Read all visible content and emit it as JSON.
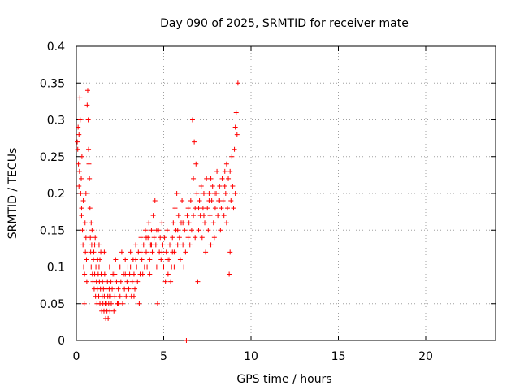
{
  "chart_data": {
    "type": "scatter",
    "title": "Day 090 of 2025, SRMTID for receiver mate",
    "xlabel": "GPS time / hours",
    "ylabel": "SRMTID / TECUs",
    "xlim": [
      0,
      24
    ],
    "ylim": [
      0,
      0.4
    ],
    "xticks": [
      "0",
      "5",
      "10",
      "15",
      "20"
    ],
    "yticks": [
      "0",
      "0.05",
      "0.1",
      "0.15",
      "0.2",
      "0.25",
      "0.3",
      "0.35",
      "0.4"
    ],
    "grid": true,
    "marker": "+",
    "color": "#ff0000",
    "series": [
      {
        "name": "SRMTID",
        "points": [
          [
            0.05,
            0.27
          ],
          [
            0.08,
            0.26
          ],
          [
            0.1,
            0.29
          ],
          [
            0.12,
            0.24
          ],
          [
            0.15,
            0.28
          ],
          [
            0.18,
            0.23
          ],
          [
            0.2,
            0.33
          ],
          [
            0.22,
            0.3
          ],
          [
            0.25,
            0.2
          ],
          [
            0.28,
            0.22
          ],
          [
            0.3,
            0.18
          ],
          [
            0.32,
            0.25
          ],
          [
            0.35,
            0.15
          ],
          [
            0.38,
            0.13
          ],
          [
            0.4,
            0.19
          ],
          [
            0.42,
            0.1
          ],
          [
            0.45,
            0.05
          ],
          [
            0.47,
            0.09
          ],
          [
            0.5,
            0.16
          ],
          [
            0.52,
            0.12
          ],
          [
            0.55,
            0.2
          ],
          [
            0.58,
            0.11
          ],
          [
            0.6,
            0.08
          ],
          [
            0.62,
            0.32
          ],
          [
            0.65,
            0.34
          ],
          [
            0.68,
            0.3
          ],
          [
            0.7,
            0.26
          ],
          [
            0.72,
            0.24
          ],
          [
            0.75,
            0.22
          ],
          [
            0.78,
            0.18
          ],
          [
            0.8,
            0.14
          ],
          [
            0.82,
            0.12
          ],
          [
            0.85,
            0.1
          ],
          [
            0.88,
            0.13
          ],
          [
            0.9,
            0.15
          ],
          [
            0.92,
            0.09
          ],
          [
            0.95,
            0.08
          ],
          [
            0.98,
            0.11
          ],
          [
            1.0,
            0.12
          ],
          [
            1.02,
            0.07
          ],
          [
            1.05,
            0.09
          ],
          [
            1.08,
            0.14
          ],
          [
            1.1,
            0.06
          ],
          [
            1.12,
            0.1
          ],
          [
            1.15,
            0.08
          ],
          [
            1.18,
            0.05
          ],
          [
            1.2,
            0.07
          ],
          [
            1.22,
            0.11
          ],
          [
            1.25,
            0.09
          ],
          [
            1.28,
            0.06
          ],
          [
            1.3,
            0.1
          ],
          [
            1.32,
            0.08
          ],
          [
            1.35,
            0.05
          ],
          [
            1.38,
            0.07
          ],
          [
            1.4,
            0.12
          ],
          [
            1.42,
            0.09
          ],
          [
            1.45,
            0.04
          ],
          [
            1.48,
            0.06
          ],
          [
            1.5,
            0.08
          ],
          [
            1.52,
            0.05
          ],
          [
            1.55,
            0.07
          ],
          [
            1.58,
            0.04
          ],
          [
            1.6,
            0.06
          ],
          [
            1.62,
            0.09
          ],
          [
            1.65,
            0.05
          ],
          [
            1.68,
            0.03
          ],
          [
            1.7,
            0.07
          ],
          [
            1.72,
            0.05
          ],
          [
            1.75,
            0.04
          ],
          [
            1.78,
            0.08
          ],
          [
            1.8,
            0.06
          ],
          [
            1.82,
            0.03
          ],
          [
            1.85,
            0.05
          ],
          [
            1.88,
            0.07
          ],
          [
            1.9,
            0.1
          ],
          [
            1.92,
            0.04
          ],
          [
            1.95,
            0.06
          ],
          [
            1.98,
            0.08
          ],
          [
            2.0,
            0.05
          ],
          [
            2.05,
            0.07
          ],
          [
            2.1,
            0.09
          ],
          [
            2.15,
            0.04
          ],
          [
            2.2,
            0.06
          ],
          [
            2.25,
            0.11
          ],
          [
            2.3,
            0.08
          ],
          [
            2.35,
            0.05
          ],
          [
            2.4,
            0.07
          ],
          [
            2.45,
            0.1
          ],
          [
            2.5,
            0.06
          ],
          [
            2.55,
            0.08
          ],
          [
            2.6,
            0.12
          ],
          [
            2.65,
            0.05
          ],
          [
            2.7,
            0.09
          ],
          [
            2.75,
            0.07
          ],
          [
            2.8,
            0.11
          ],
          [
            2.85,
            0.06
          ],
          [
            2.9,
            0.08
          ],
          [
            2.95,
            0.1
          ],
          [
            3.0,
            0.07
          ],
          [
            3.05,
            0.09
          ],
          [
            3.1,
            0.12
          ],
          [
            3.15,
            0.06
          ],
          [
            3.2,
            0.08
          ],
          [
            3.25,
            0.11
          ],
          [
            3.3,
            0.09
          ],
          [
            3.35,
            0.07
          ],
          [
            3.4,
            0.13
          ],
          [
            3.45,
            0.1
          ],
          [
            3.5,
            0.08
          ],
          [
            3.55,
            0.12
          ],
          [
            3.6,
            0.05
          ],
          [
            3.65,
            0.09
          ],
          [
            3.7,
            0.14
          ],
          [
            3.75,
            0.11
          ],
          [
            3.8,
            0.09
          ],
          [
            3.85,
            0.13
          ],
          [
            3.9,
            0.1
          ],
          [
            3.95,
            0.15
          ],
          [
            4.0,
            0.12
          ],
          [
            4.05,
            0.1
          ],
          [
            4.1,
            0.14
          ],
          [
            4.15,
            0.16
          ],
          [
            4.2,
            0.11
          ],
          [
            4.25,
            0.13
          ],
          [
            4.3,
            0.15
          ],
          [
            4.35,
            0.12
          ],
          [
            4.4,
            0.17
          ],
          [
            4.45,
            0.14
          ],
          [
            4.5,
            0.19
          ],
          [
            4.55,
            0.13
          ],
          [
            4.6,
            0.1
          ],
          [
            4.65,
            0.05
          ],
          [
            4.7,
            0.15
          ],
          [
            4.75,
            0.12
          ],
          [
            4.8,
            0.14
          ],
          [
            4.85,
            0.11
          ],
          [
            4.9,
            0.16
          ],
          [
            4.95,
            0.13
          ],
          [
            5.0,
            0.1
          ],
          [
            5.05,
            0.14
          ],
          [
            5.1,
            0.08
          ],
          [
            5.15,
            0.12
          ],
          [
            5.2,
            0.15
          ],
          [
            5.25,
            0.09
          ],
          [
            5.3,
            0.11
          ],
          [
            5.35,
            0.13
          ],
          [
            5.4,
            0.08
          ],
          [
            5.45,
            0.1
          ],
          [
            5.5,
            0.14
          ],
          [
            5.55,
            0.16
          ],
          [
            5.6,
            0.12
          ],
          [
            5.65,
            0.18
          ],
          [
            5.7,
            0.15
          ],
          [
            5.75,
            0.2
          ],
          [
            5.8,
            0.13
          ],
          [
            5.85,
            0.17
          ],
          [
            5.9,
            0.14
          ],
          [
            5.95,
            0.11
          ],
          [
            6.0,
            0.16
          ],
          [
            6.05,
            0.19
          ],
          [
            6.1,
            0.13
          ],
          [
            6.15,
            0.1
          ],
          [
            6.2,
            0.15
          ],
          [
            6.25,
            0.12
          ],
          [
            6.3,
            0.0
          ],
          [
            6.35,
            0.17
          ],
          [
            6.4,
            0.14
          ],
          [
            6.45,
            0.16
          ],
          [
            6.5,
            0.13
          ],
          [
            6.55,
            0.19
          ],
          [
            6.6,
            0.15
          ],
          [
            6.65,
            0.3
          ],
          [
            6.7,
            0.22
          ],
          [
            6.75,
            0.27
          ],
          [
            6.8,
            0.18
          ],
          [
            6.85,
            0.24
          ],
          [
            6.9,
            0.2
          ],
          [
            6.95,
            0.08
          ],
          [
            7.0,
            0.15
          ],
          [
            7.05,
            0.19
          ],
          [
            7.1,
            0.17
          ],
          [
            7.15,
            0.21
          ],
          [
            7.2,
            0.14
          ],
          [
            7.25,
            0.18
          ],
          [
            7.3,
            0.2
          ],
          [
            7.35,
            0.16
          ],
          [
            7.4,
            0.12
          ],
          [
            7.45,
            0.22
          ],
          [
            7.5,
            0.18
          ],
          [
            7.55,
            0.15
          ],
          [
            7.6,
            0.2
          ],
          [
            7.65,
            0.17
          ],
          [
            7.7,
            0.13
          ],
          [
            7.75,
            0.19
          ],
          [
            7.8,
            0.21
          ],
          [
            7.85,
            0.16
          ],
          [
            7.9,
            0.14
          ],
          [
            7.95,
            0.18
          ],
          [
            8.0,
            0.2
          ],
          [
            8.05,
            0.23
          ],
          [
            8.1,
            0.17
          ],
          [
            8.15,
            0.19
          ],
          [
            8.2,
            0.21
          ],
          [
            8.25,
            0.15
          ],
          [
            8.3,
            0.18
          ],
          [
            8.35,
            0.22
          ],
          [
            8.4,
            0.19
          ],
          [
            8.45,
            0.17
          ],
          [
            8.5,
            0.23
          ],
          [
            8.55,
            0.2
          ],
          [
            8.6,
            0.24
          ],
          [
            8.65,
            0.18
          ],
          [
            8.7,
            0.22
          ],
          [
            8.75,
            0.09
          ],
          [
            8.8,
            0.12
          ],
          [
            8.85,
            0.19
          ],
          [
            8.9,
            0.25
          ],
          [
            8.95,
            0.21
          ],
          [
            9.0,
            0.18
          ],
          [
            9.05,
            0.26
          ],
          [
            9.1,
            0.29
          ],
          [
            9.15,
            0.31
          ],
          [
            9.2,
            0.28
          ],
          [
            9.25,
            0.35
          ],
          [
            0.15,
            0.21
          ],
          [
            0.3,
            0.17
          ],
          [
            0.55,
            0.14
          ],
          [
            0.85,
            0.16
          ],
          [
            1.05,
            0.13
          ],
          [
            1.35,
            0.11
          ],
          [
            1.6,
            0.12
          ],
          [
            1.9,
            0.06
          ],
          [
            2.2,
            0.09
          ],
          [
            2.5,
            0.1
          ],
          [
            2.8,
            0.09
          ],
          [
            3.1,
            0.1
          ],
          [
            3.4,
            0.11
          ],
          [
            3.7,
            0.12
          ],
          [
            4.0,
            0.14
          ],
          [
            4.3,
            0.13
          ],
          [
            4.6,
            0.15
          ],
          [
            4.9,
            0.12
          ],
          [
            5.2,
            0.11
          ],
          [
            5.5,
            0.12
          ],
          [
            5.8,
            0.15
          ],
          [
            6.1,
            0.16
          ],
          [
            6.4,
            0.18
          ],
          [
            6.7,
            0.17
          ],
          [
            7.0,
            0.18
          ],
          [
            7.3,
            0.17
          ],
          [
            7.6,
            0.19
          ],
          [
            7.9,
            0.2
          ],
          [
            8.2,
            0.19
          ],
          [
            8.5,
            0.21
          ],
          [
            8.8,
            0.23
          ],
          [
            9.1,
            0.2
          ],
          [
            1.3,
            0.13
          ],
          [
            2.4,
            0.05
          ],
          [
            3.3,
            0.06
          ],
          [
            4.2,
            0.09
          ],
          [
            5.6,
            0.1
          ],
          [
            6.8,
            0.14
          ],
          [
            7.7,
            0.22
          ],
          [
            8.6,
            0.16
          ]
        ]
      }
    ]
  }
}
